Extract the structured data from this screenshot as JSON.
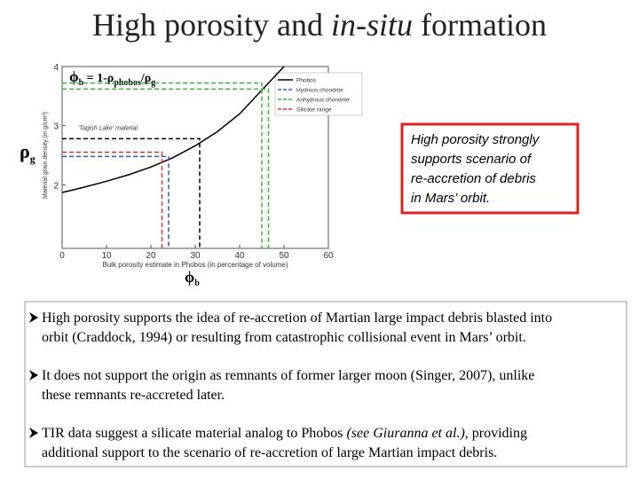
{
  "title": [
    "High porosity and ",
    "in-situ",
    " formation"
  ],
  "formula": {
    "phi": "ϕ",
    "phi_sub": "b",
    "mid": " = 1-ρ",
    "mid_sub": "phobos",
    "slash": "/ρ",
    "slash_sub": "g"
  },
  "rho_label": {
    "symbol": "ρ",
    "sub": "g"
  },
  "phi_label": {
    "symbol": "ϕ",
    "sub": "b"
  },
  "chart": {
    "type": "line",
    "x_label": "Bulk porosity estimate in Phobos (in percentage of volume)",
    "y_label": "Material grain density (in g/cm³)",
    "annotation": {
      "text": "'Tagish Lake' material",
      "x": 31,
      "y": 2.78
    },
    "xlim": [
      0,
      60
    ],
    "xticks": [
      0,
      10,
      20,
      30,
      40,
      50,
      60
    ],
    "ylim": [
      1,
      4
    ],
    "yticks": [
      2,
      3,
      4
    ],
    "series": [
      {
        "name": "Phobos",
        "color": "#000000",
        "dashed": false,
        "x": [
          0,
          5,
          10,
          15,
          20,
          25,
          30,
          35,
          40,
          45,
          50
        ],
        "values": [
          1.87,
          1.96,
          2.06,
          2.17,
          2.3,
          2.46,
          2.66,
          2.9,
          3.2,
          3.6,
          4.0
        ]
      },
      {
        "name": "Hydrous chondrite",
        "color": "#3355cc",
        "dashed": true,
        "x": [
          24
        ],
        "values": [
          2.48
        ]
      },
      {
        "name": "Anhydrous chondrite",
        "color": "#33bb33",
        "dashed": true,
        "x": [
          45,
          46.5
        ],
        "values": [
          3.72,
          3.62
        ]
      },
      {
        "name": "Silicate range",
        "color": "#dd3333",
        "dashed": true,
        "x": [
          22.5
        ],
        "values": [
          2.55
        ]
      }
    ]
  },
  "callout": [
    "High porosity strongly",
    "supports scenario of",
    "re-accretion of debris",
    "in Mars’ orbit."
  ],
  "bullets": [
    [
      [
        "High porosity supports the idea of re-accretion of Martian large impact debris blasted into"
      ],
      [
        "orbit (Craddock, 1994) or resulting from catastrophic collisional event in Mars’ orbit."
      ]
    ],
    [
      [
        "It does not support the origin as remnants of former larger moon (Singer, 2007), unlike"
      ],
      [
        "these remnants re-accreted later."
      ]
    ],
    [
      [
        "TIR data suggest a silicate material analog to Phobos ",
        "(see Giuranna et al.),",
        " providing"
      ],
      [
        "additional support to the scenario of re-accretion of large Martian impact debris."
      ]
    ]
  ]
}
